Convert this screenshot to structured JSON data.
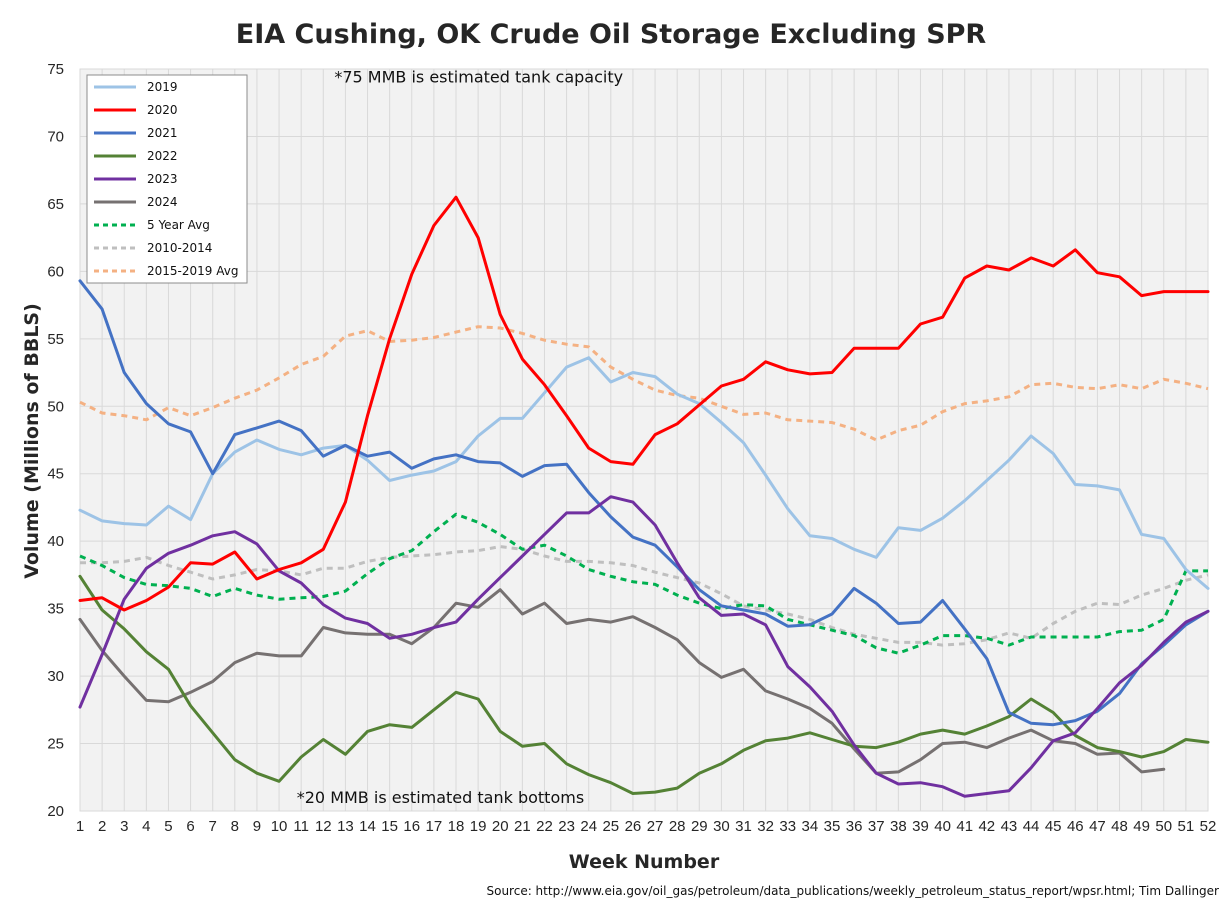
{
  "chart_data": {
    "type": "line",
    "title": "EIA Cushing, OK Crude Oil Storage Excluding SPR",
    "xlabel": "Week Number",
    "ylabel": "Volume (Millions of BBLS)",
    "source": "Source: http://www.eia.gov/oil_gas/petroleum/data_publications/weekly_petroleum_status_report/wpsr.html; Tim Dallinger",
    "annotations": [
      {
        "text": "*75 MMB is estimated tank capacity",
        "x": 12.5,
        "y": 74.0
      },
      {
        "text": "*20 MMB is estimated tank bottoms",
        "x": 10.8,
        "y": 20.6
      }
    ],
    "xlim": [
      1,
      52
    ],
    "ylim": [
      20,
      75
    ],
    "yticks": [
      20,
      25,
      30,
      35,
      40,
      45,
      50,
      55,
      60,
      65,
      70,
      75
    ],
    "x": [
      1,
      2,
      3,
      4,
      5,
      6,
      7,
      8,
      9,
      10,
      11,
      12,
      13,
      14,
      15,
      16,
      17,
      18,
      19,
      20,
      21,
      22,
      23,
      24,
      25,
      26,
      27,
      28,
      29,
      30,
      31,
      32,
      33,
      34,
      35,
      36,
      37,
      38,
      39,
      40,
      41,
      42,
      43,
      44,
      45,
      46,
      47,
      48,
      49,
      50,
      51,
      52
    ],
    "grid": "both",
    "legend_position": "top-left",
    "series": [
      {
        "name": "2019",
        "color": "#9DC3E6",
        "dash": false,
        "values": [
          42.3,
          41.5,
          41.3,
          41.2,
          42.6,
          41.6,
          45.0,
          46.6,
          47.5,
          46.8,
          46.4,
          46.9,
          47.1,
          46.0,
          44.5,
          44.9,
          45.2,
          45.9,
          47.8,
          49.1,
          49.1,
          51.0,
          52.9,
          53.6,
          51.8,
          52.5,
          52.2,
          50.9,
          50.2,
          48.8,
          47.3,
          44.9,
          42.4,
          40.4,
          40.2,
          39.4,
          38.8,
          41.0,
          40.8,
          41.7,
          43.0,
          44.5,
          46.0,
          47.8,
          46.5,
          44.2,
          44.1,
          43.8,
          40.5,
          40.2,
          37.9,
          36.5
        ]
      },
      {
        "name": "2020",
        "color": "#FF0000",
        "dash": false,
        "values": [
          35.6,
          35.8,
          34.9,
          35.6,
          36.6,
          38.4,
          38.3,
          39.2,
          37.2,
          37.9,
          38.4,
          39.4,
          42.9,
          49.3,
          55.0,
          59.8,
          63.4,
          65.5,
          62.5,
          56.8,
          53.5,
          51.6,
          49.3,
          46.9,
          45.9,
          45.7,
          47.9,
          48.7,
          50.1,
          51.5,
          52.0,
          53.3,
          52.7,
          52.4,
          52.5,
          54.3,
          54.3,
          54.3,
          56.1,
          56.6,
          59.5,
          60.4,
          60.1,
          61.0,
          60.4,
          61.6,
          59.9,
          59.6,
          58.2,
          58.5,
          58.5,
          58.5
        ]
      },
      {
        "name": "2021",
        "color": "#4472C4",
        "dash": false,
        "values": [
          59.3,
          57.2,
          52.5,
          50.2,
          48.7,
          48.1,
          45.0,
          47.9,
          48.4,
          48.9,
          48.2,
          46.3,
          47.1,
          46.3,
          46.6,
          45.4,
          46.1,
          46.4,
          45.9,
          45.8,
          44.8,
          45.6,
          45.7,
          43.6,
          41.8,
          40.3,
          39.7,
          38.1,
          36.4,
          35.2,
          34.9,
          34.6,
          33.7,
          33.8,
          34.6,
          36.5,
          35.4,
          33.9,
          34.0,
          35.6,
          33.5,
          31.3,
          27.3,
          26.5,
          26.4,
          26.7,
          27.4,
          28.7,
          30.9,
          32.3,
          33.8,
          34.8
        ]
      },
      {
        "name": "2022",
        "color": "#548235",
        "dash": false,
        "values": [
          37.4,
          34.9,
          33.5,
          31.8,
          30.5,
          27.8,
          25.8,
          23.8,
          22.8,
          22.2,
          24.0,
          25.3,
          24.2,
          25.9,
          26.4,
          26.2,
          27.5,
          28.8,
          28.3,
          25.9,
          24.8,
          25.0,
          23.5,
          22.7,
          22.1,
          21.3,
          21.4,
          21.7,
          22.8,
          23.5,
          24.5,
          25.2,
          25.4,
          25.8,
          25.3,
          24.8,
          24.7,
          25.1,
          25.7,
          26.0,
          25.7,
          26.3,
          27.0,
          28.3,
          27.3,
          25.6,
          24.7,
          24.4,
          24.0,
          24.4,
          25.3,
          25.1
        ]
      },
      {
        "name": "2023",
        "color": "#7030A0",
        "dash": false,
        "values": [
          27.7,
          31.6,
          35.7,
          38.0,
          39.1,
          39.7,
          40.4,
          40.7,
          39.8,
          37.8,
          36.9,
          35.3,
          34.3,
          33.9,
          32.8,
          33.1,
          33.6,
          34.0,
          35.7,
          37.3,
          38.9,
          40.5,
          42.1,
          42.1,
          43.3,
          42.9,
          41.2,
          38.4,
          35.8,
          34.5,
          34.6,
          33.8,
          30.7,
          29.2,
          27.4,
          24.9,
          22.8,
          22.0,
          22.1,
          21.8,
          21.1,
          21.3,
          21.5,
          23.2,
          25.2,
          25.8,
          27.6,
          29.5,
          30.8,
          32.5,
          34.0,
          34.8
        ]
      },
      {
        "name": "2024",
        "color": "#767171",
        "dash": false,
        "values": [
          34.2,
          31.9,
          30.0,
          28.2,
          28.1,
          28.8,
          29.6,
          31.0,
          31.7,
          31.5,
          31.5,
          33.6,
          33.2,
          33.1,
          33.1,
          32.4,
          33.6,
          35.4,
          35.1,
          36.4,
          34.6,
          35.4,
          33.9,
          34.2,
          34.0,
          34.4,
          33.6,
          32.7,
          31.0,
          29.9,
          30.5,
          28.9,
          28.3,
          27.6,
          26.5,
          24.6,
          22.8,
          22.9,
          23.8,
          25.0,
          25.1,
          24.7,
          25.4,
          26.0,
          25.2,
          25.0,
          24.2,
          24.3,
          22.9,
          23.1,
          null,
          null
        ]
      },
      {
        "name": "5 Year Avg",
        "color": "#00B050",
        "dash": true,
        "values": [
          38.9,
          38.2,
          37.3,
          36.8,
          36.7,
          36.5,
          35.9,
          36.5,
          36.0,
          35.7,
          35.8,
          35.9,
          36.3,
          37.6,
          38.7,
          39.3,
          40.7,
          42.0,
          41.4,
          40.5,
          39.4,
          39.7,
          38.9,
          37.9,
          37.4,
          37.0,
          36.8,
          36.0,
          35.4,
          35.0,
          35.3,
          35.2,
          34.2,
          33.8,
          33.4,
          33.0,
          32.1,
          31.7,
          32.3,
          33.0,
          33.0,
          32.8,
          32.3,
          32.9,
          32.9,
          32.9,
          32.9,
          33.3,
          33.4,
          34.2,
          37.8,
          37.8
        ]
      },
      {
        "name": "2010-2014",
        "color": "#BFBFBF",
        "dash": true,
        "values": [
          38.4,
          38.4,
          38.5,
          38.8,
          38.2,
          37.7,
          37.2,
          37.5,
          37.9,
          37.8,
          37.5,
          38.0,
          38.0,
          38.5,
          38.8,
          38.9,
          39.0,
          39.2,
          39.3,
          39.6,
          39.4,
          38.9,
          38.5,
          38.5,
          38.4,
          38.2,
          37.7,
          37.3,
          36.9,
          36.1,
          35.2,
          34.9,
          34.6,
          34.2,
          33.6,
          33.1,
          32.8,
          32.5,
          32.5,
          32.3,
          32.4,
          32.7,
          33.2,
          32.8,
          33.9,
          34.8,
          35.4,
          35.3,
          36.0,
          36.5,
          37.1,
          37.5
        ]
      },
      {
        "name": "2015-2019 Avg",
        "color": "#F4B183",
        "dash": true,
        "values": [
          50.3,
          49.5,
          49.3,
          49.0,
          49.9,
          49.3,
          49.9,
          50.6,
          51.2,
          52.1,
          53.1,
          53.7,
          55.2,
          55.6,
          54.8,
          54.9,
          55.1,
          55.5,
          55.9,
          55.8,
          55.4,
          54.9,
          54.6,
          54.4,
          52.9,
          52.0,
          51.2,
          50.8,
          50.6,
          50.0,
          49.4,
          49.5,
          49.0,
          48.9,
          48.8,
          48.3,
          47.5,
          48.2,
          48.6,
          49.6,
          50.2,
          50.4,
          50.7,
          51.6,
          51.7,
          51.4,
          51.3,
          51.6,
          51.3,
          52.0,
          51.7,
          51.3
        ]
      }
    ]
  }
}
